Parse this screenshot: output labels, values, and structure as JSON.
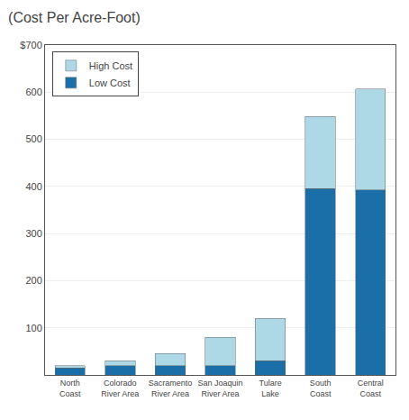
{
  "chart_data": {
    "type": "bar",
    "title": "(Cost Per Acre-Foot)",
    "categories": [
      "North\nCoast",
      "Colorado\nRiver Area",
      "Sacramento\nRiver Area",
      "San Joaquin\nRiver Area",
      "Tulare\nLake",
      "South\nCoast",
      "Central\nCoast"
    ],
    "series": [
      {
        "name": "Low Cost",
        "color": "#1a6fa8",
        "values": [
          15,
          20,
          20,
          20,
          30,
          395,
          393
        ]
      },
      {
        "name": "High Cost",
        "color": "#add8e6",
        "values": [
          5,
          10,
          25,
          60,
          90,
          153,
          214
        ]
      }
    ],
    "stacked": true,
    "ylim": [
      0,
      700
    ],
    "yticks": [
      100,
      200,
      300,
      400,
      500,
      600,
      {
        "value": 700,
        "label": "$700"
      }
    ],
    "grid": true,
    "legend": "upper left"
  }
}
